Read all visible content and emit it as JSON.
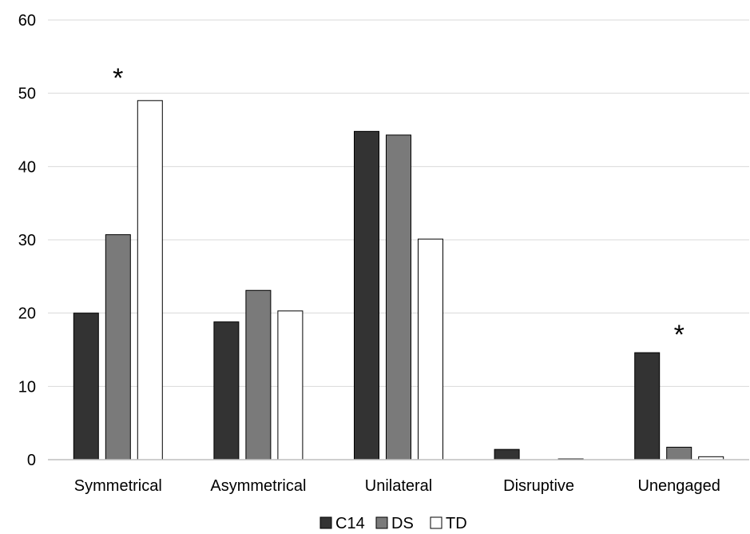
{
  "chart_data": {
    "type": "bar",
    "categories": [
      "Symmetrical",
      "Asymmetrical",
      "Unilateral",
      "Disruptive",
      "Unengaged"
    ],
    "series": [
      {
        "name": "C14",
        "color": "#333333",
        "values": [
          20,
          18.8,
          44.8,
          1.4,
          14.6
        ]
      },
      {
        "name": "DS",
        "color": "#7a7a7a",
        "values": [
          30.7,
          23.1,
          44.3,
          0,
          1.7
        ]
      },
      {
        "name": "TD",
        "color": "#ffffff",
        "values": [
          49,
          20.3,
          30.1,
          0.1,
          0.4
        ]
      }
    ],
    "ylim": [
      0,
      60
    ],
    "yticks": [
      0,
      10,
      20,
      30,
      40,
      50,
      60
    ],
    "grid": true,
    "legend_position": "bottom-center",
    "annotations": [
      {
        "text": "*",
        "category": "Symmetrical",
        "y": 53
      },
      {
        "text": "*",
        "category": "Unengaged",
        "y": 18
      }
    ]
  }
}
